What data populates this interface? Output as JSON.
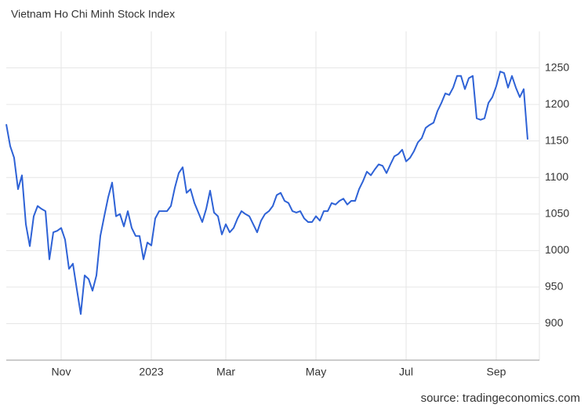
{
  "chart_data": {
    "type": "line",
    "title": "Vietnam Ho Chi Minh Stock Index",
    "source": "source: tradingeconomics.com",
    "categories": [
      null,
      null,
      null,
      null,
      null,
      null,
      null,
      null,
      null,
      null,
      null,
      null,
      null,
      null,
      "Nov",
      null,
      null,
      null,
      null,
      null,
      null,
      null,
      null,
      null,
      null,
      null,
      null,
      null,
      null,
      null,
      null,
      null,
      null,
      null,
      null,
      null,
      null,
      "2023",
      null,
      null,
      null,
      null,
      null,
      null,
      null,
      null,
      null,
      null,
      null,
      null,
      null,
      null,
      null,
      null,
      null,
      null,
      "Mar",
      null,
      null,
      null,
      null,
      null,
      null,
      null,
      null,
      null,
      null,
      null,
      null,
      null,
      null,
      null,
      null,
      null,
      null,
      null,
      null,
      null,
      null,
      "May",
      null,
      null,
      null,
      null,
      null,
      null,
      null,
      null,
      null,
      null,
      null,
      null,
      null,
      null,
      null,
      null,
      null,
      null,
      null,
      null,
      null,
      null,
      "Jul",
      null,
      null,
      null,
      null,
      null,
      null,
      null,
      null,
      null,
      null,
      null,
      null,
      null,
      null,
      null,
      null,
      null,
      null,
      null,
      null,
      null,
      null,
      "Sep",
      null,
      null,
      null,
      null,
      null,
      null,
      null,
      null
    ],
    "values": [
      1173,
      1143,
      1127,
      1084,
      1103,
      1036,
      1006,
      1047,
      1061,
      1057,
      1054,
      988,
      1025,
      1027,
      1031,
      1015,
      975,
      982,
      947,
      913,
      966,
      961,
      945,
      966,
      1020,
      1047,
      1073,
      1093,
      1047,
      1050,
      1033,
      1054,
      1031,
      1020,
      1020,
      988,
      1011,
      1007,
      1044,
      1054,
      1054,
      1054,
      1061,
      1086,
      1106,
      1114,
      1079,
      1084,
      1065,
      1052,
      1039,
      1057,
      1082,
      1052,
      1047,
      1022,
      1036,
      1025,
      1031,
      1044,
      1054,
      1050,
      1047,
      1036,
      1025,
      1041,
      1050,
      1054,
      1061,
      1076,
      1079,
      1068,
      1065,
      1054,
      1052,
      1054,
      1044,
      1039,
      1039,
      1047,
      1041,
      1054,
      1054,
      1065,
      1063,
      1068,
      1071,
      1063,
      1068,
      1068,
      1084,
      1095,
      1108,
      1103,
      1111,
      1118,
      1116,
      1106,
      1118,
      1129,
      1132,
      1138,
      1122,
      1127,
      1136,
      1148,
      1154,
      1168,
      1172,
      1175,
      1191,
      1202,
      1215,
      1213,
      1223,
      1239,
      1239,
      1221,
      1236,
      1239,
      1181,
      1179,
      1181,
      1202,
      1210,
      1225,
      1245,
      1243,
      1223,
      1239,
      1223,
      1210,
      1221,
      1152
    ],
    "color": "#2e62d6",
    "ylim": [
      850,
      1300
    ],
    "yticks": [
      900,
      950,
      1000,
      1050,
      1100,
      1150,
      1200,
      1250
    ],
    "grid": true
  }
}
